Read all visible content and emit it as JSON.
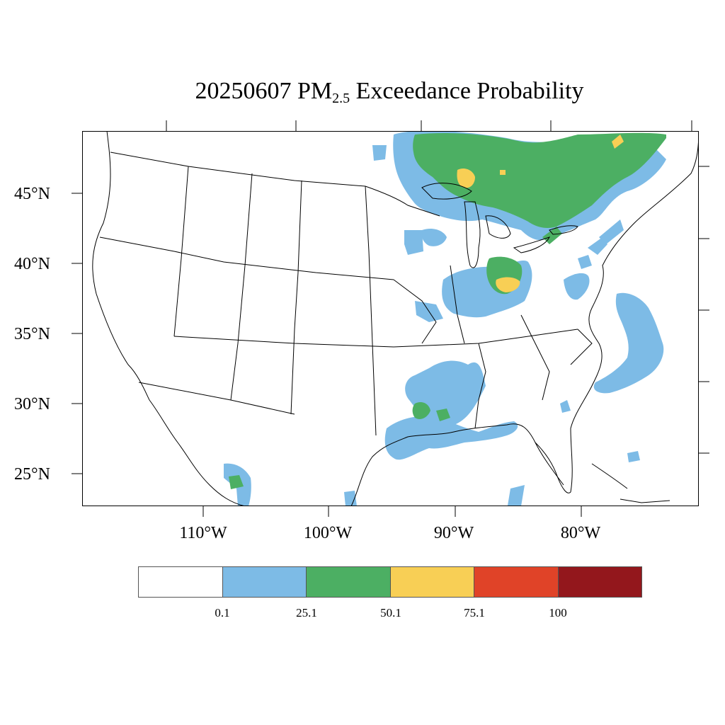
{
  "title": {
    "date": "20250607",
    "pm_main": "PM",
    "pm_sub": "2.5",
    "rest": "Exceedance Probability"
  },
  "lat_labels": [
    "45°N",
    "40°N",
    "35°N",
    "30°N",
    "25°N"
  ],
  "lon_labels": [
    "110°W",
    "100°W",
    "90°W",
    "80°W"
  ],
  "colorbar": {
    "colors": [
      "#ffffff",
      "#7dbbe6",
      "#4caf63",
      "#f8cf55",
      "#e04328",
      "#93171c"
    ],
    "labels": [
      "0.1",
      "25.1",
      "50.1",
      "75.1",
      "100"
    ]
  },
  "map": {
    "land_color": "#ffffff",
    "boundary_color": "#000000",
    "regions": [
      {
        "name": "Great Lakes / Ontario plume",
        "level": "25.1-50.1"
      },
      {
        "name": "Northern Ontario / Quebec plume",
        "level": "50.1-75.1"
      },
      {
        "name": "Ohio Valley plume",
        "level": "50.1-75.1"
      },
      {
        "name": "Lower Mississippi / Gulf Coast",
        "level": "25.1-50.1"
      },
      {
        "name": "Western Atlantic offshore",
        "level": "0.1-25.1"
      }
    ]
  }
}
